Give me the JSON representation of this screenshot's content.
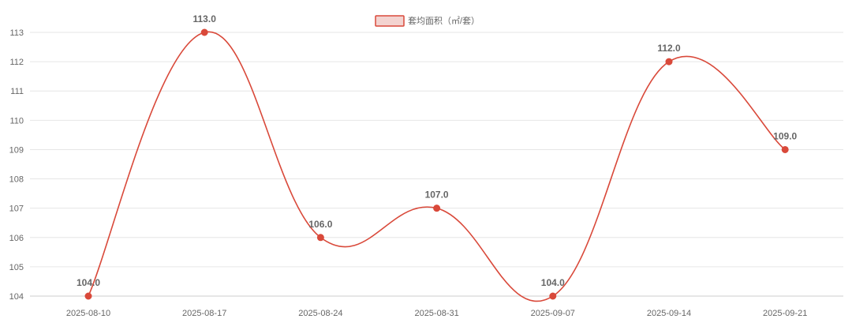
{
  "chart_data": {
    "type": "line",
    "title": "",
    "xlabel": "",
    "ylabel": "",
    "x": [
      "2025-08-10",
      "2025-08-17",
      "2025-08-24",
      "2025-08-31",
      "2025-09-07",
      "2025-09-14",
      "2025-09-21"
    ],
    "series": [
      {
        "name": "套均面积（㎡/套）",
        "values": [
          104.0,
          113.0,
          106.0,
          107.0,
          104.0,
          112.0,
          109.0
        ],
        "color": "#d9493a",
        "fill": "#f3d3d0",
        "smooth": true
      }
    ],
    "ylim": [
      104,
      113
    ],
    "yticks": [
      104,
      105,
      106,
      107,
      108,
      109,
      110,
      111,
      112,
      113
    ],
    "grid": true,
    "legend": "top-center",
    "data_labels": [
      "104.0",
      "113.0",
      "106.0",
      "107.0",
      "104.0",
      "112.0",
      "109.0"
    ]
  }
}
